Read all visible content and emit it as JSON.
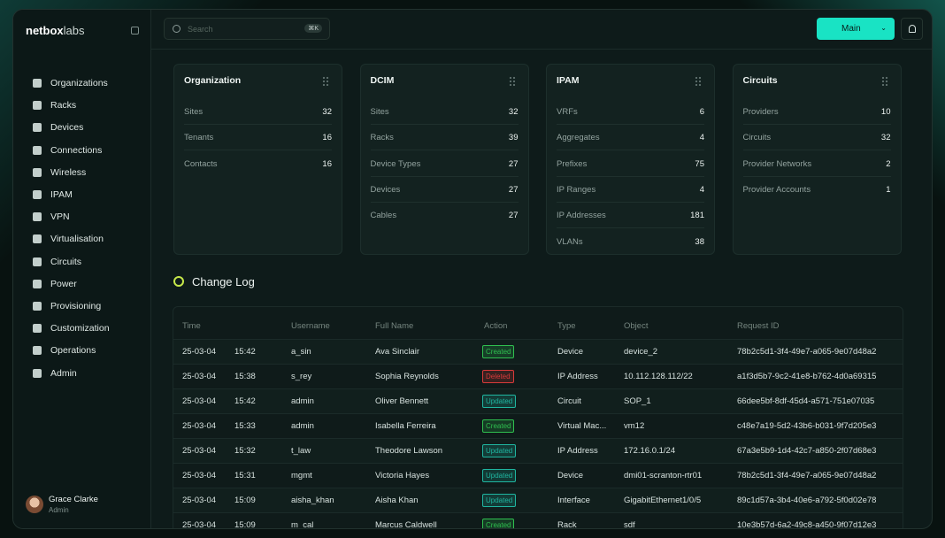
{
  "sidebar": {
    "brand": {
      "name": "netbox",
      "suffix": "labs"
    },
    "nav": [
      "Organizations",
      "Racks",
      "Devices",
      "Connections",
      "Wireless",
      "IPAM",
      "VPN",
      "Virtualisation",
      "Circuits",
      "Power",
      "Provisioning",
      "Customization",
      "Operations",
      "Admin"
    ],
    "user": {
      "name": "Grace Clarke",
      "role": "Admin"
    }
  },
  "topbar": {
    "search_placeholder": "Search",
    "search_shortcut": "⌘K",
    "branch": "Main"
  },
  "cards": [
    {
      "title": "Organization",
      "rows": [
        [
          "Sites",
          32
        ],
        [
          "Tenants",
          16
        ],
        [
          "Contacts",
          16
        ]
      ]
    },
    {
      "title": "DCIM",
      "rows": [
        [
          "Sites",
          32
        ],
        [
          "Racks",
          39
        ],
        [
          "Device Types",
          27
        ],
        [
          "Devices",
          27
        ],
        [
          "Cables",
          27
        ]
      ]
    },
    {
      "title": "IPAM",
      "rows": [
        [
          "VRFs",
          6
        ],
        [
          "Aggregates",
          4
        ],
        [
          "Prefixes",
          75
        ],
        [
          "IP Ranges",
          4
        ],
        [
          "IP Addresses",
          181
        ],
        [
          "VLANs",
          38
        ]
      ]
    },
    {
      "title": "Circuits",
      "rows": [
        [
          "Providers",
          10
        ],
        [
          "Circuits",
          32
        ],
        [
          "Provider Networks",
          2
        ],
        [
          "Provider Accounts",
          1
        ]
      ]
    }
  ],
  "changelog": {
    "title": "Change Log",
    "columns": [
      "Time",
      "Username",
      "Full Name",
      "Action",
      "Type",
      "Object",
      "Request ID"
    ],
    "rows": [
      [
        "25-03-04",
        "15:42",
        "a_sin",
        "Ava Sinclair",
        {
          "text": "Created",
          "color": "#2fbf4f"
        },
        "Device",
        "device_2",
        "78b2c5d1-3f4-49e7-a065-9e07d48a2"
      ],
      [
        "25-03-04",
        "15:38",
        "s_rey",
        "Sophia Reynolds",
        {
          "text": "Deleted",
          "color": "#d83a3a"
        },
        "IP Address",
        "10.112.128.112/22",
        "a1f3d5b7-9c2-41e8-b762-4d0a69315"
      ],
      [
        "25-03-04",
        "15:42",
        "admin",
        "Oliver Bennett",
        {
          "text": "Updated",
          "color": "#1fb5a0"
        },
        "Circuit",
        "SOP_1",
        "66dee5bf-8df-45d4-a571-751e07035"
      ],
      [
        "25-03-04",
        "15:33",
        "admin",
        "Isabella Ferreira",
        {
          "text": "Created",
          "color": "#2fbf4f"
        },
        "Virtual Mac...",
        "vm12",
        "c48e7a19-5d2-43b6-b031-9f7d205e3"
      ],
      [
        "25-03-04",
        "15:32",
        "t_law",
        "Theodore Lawson",
        {
          "text": "Updated",
          "color": "#1fb5a0"
        },
        "IP Address",
        "172.16.0.1/24",
        "67a3e5b9-1d4-42c7-a850-2f07d68e3"
      ],
      [
        "25-03-04",
        "15:31",
        "mgmt",
        "Victoria Hayes",
        {
          "text": "Updated",
          "color": "#1fb5a0"
        },
        "Device",
        "dmi01-scranton-rtr01",
        "78b2c5d1-3f4-49e7-a065-9e07d48a2"
      ],
      [
        "25-03-04",
        "15:09",
        "aisha_khan",
        "Aisha Khan",
        {
          "text": "Updated",
          "color": "#1fb5a0"
        },
        "Interface",
        "GigabitEthernet1/0/5",
        "89c1d57a-3b4-40e6-a792-5f0d02e78"
      ],
      [
        "25-03-04",
        "15:09",
        "m_cal",
        "Marcus Caldwell",
        {
          "text": "Created",
          "color": "#2fbf4f"
        },
        "Rack",
        "sdf",
        "10e3b57d-6a2-49c8-a450-9f07d12e3"
      ]
    ]
  }
}
